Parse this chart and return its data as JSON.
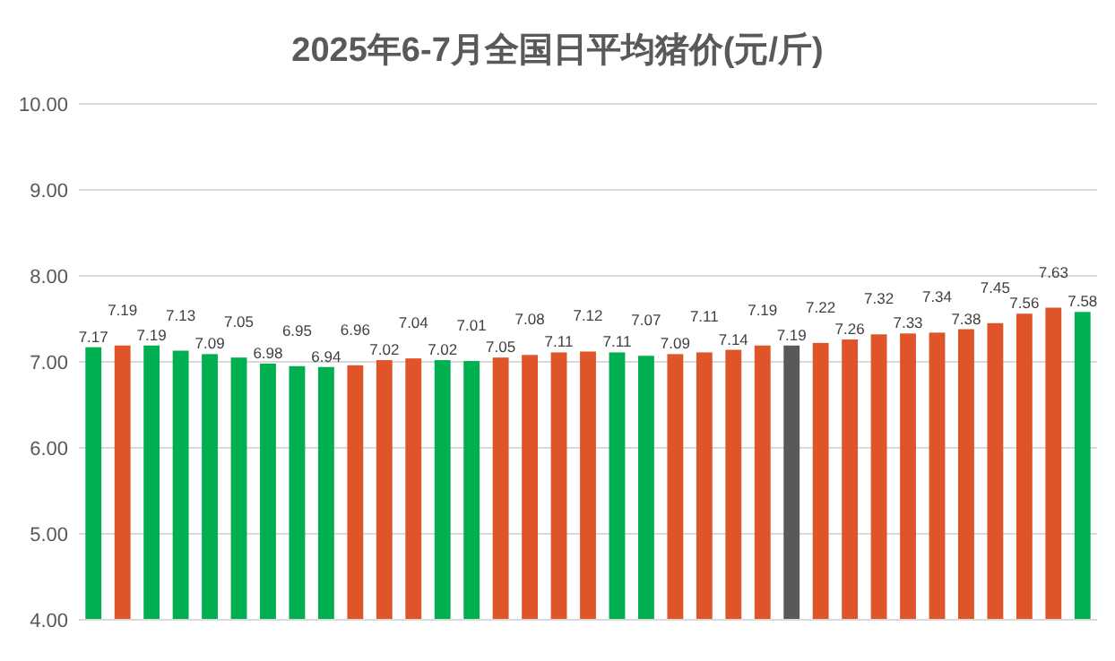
{
  "chart_data": {
    "type": "bar",
    "title": "2025年6-7月全国日平均猪价(元/斤)",
    "categories": [
      null,
      null,
      null,
      null,
      null,
      null,
      null,
      null,
      null,
      null,
      null,
      null,
      null,
      null,
      null,
      null,
      null,
      null,
      null,
      null,
      null,
      null,
      null,
      null,
      null,
      null,
      null,
      null,
      null,
      null,
      null,
      null,
      null,
      null,
      null
    ],
    "values": [
      7.17,
      7.19,
      7.19,
      7.13,
      7.09,
      7.05,
      6.98,
      6.95,
      6.94,
      6.96,
      7.02,
      7.04,
      7.02,
      7.01,
      7.05,
      7.08,
      7.11,
      7.12,
      7.11,
      7.07,
      7.09,
      7.11,
      7.14,
      7.19,
      7.19,
      7.22,
      7.26,
      7.32,
      7.33,
      7.34,
      7.38,
      7.45,
      7.56,
      7.63,
      7.58
    ],
    "colors": [
      "#00b050",
      "#e0542a",
      "#00b050",
      "#00b050",
      "#00b050",
      "#00b050",
      "#00b050",
      "#00b050",
      "#00b050",
      "#e0542a",
      "#e0542a",
      "#e0542a",
      "#00b050",
      "#00b050",
      "#e0542a",
      "#e0542a",
      "#e0542a",
      "#e0542a",
      "#00b050",
      "#00b050",
      "#e0542a",
      "#e0542a",
      "#e0542a",
      "#e0542a",
      "#595959",
      "#e0542a",
      "#e0542a",
      "#e0542a",
      "#e0542a",
      "#e0542a",
      "#e0542a",
      "#e0542a",
      "#e0542a",
      "#e0542a",
      "#00b050"
    ],
    "ylim": [
      4,
      10
    ],
    "yticks": [
      {
        "value": 4,
        "label": "4.00"
      },
      {
        "value": 5,
        "label": "5.00"
      },
      {
        "value": 6,
        "label": "6.00"
      },
      {
        "value": 7,
        "label": "7.00"
      },
      {
        "value": 8,
        "label": "8.00"
      },
      {
        "value": 9,
        "label": "9.00"
      },
      {
        "value": 10,
        "label": "10.00"
      }
    ],
    "grid": "y",
    "data_labels": true
  }
}
